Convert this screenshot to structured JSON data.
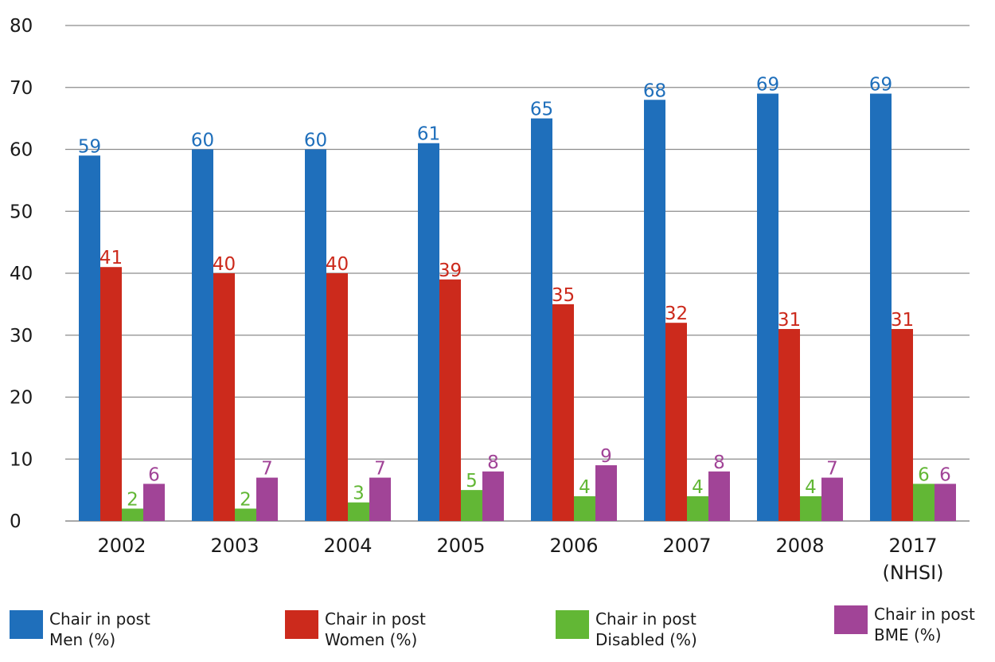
{
  "chart_data": {
    "type": "bar",
    "categories": [
      "2002",
      "2003",
      "2004",
      "2005",
      "2006",
      "2007",
      "2008",
      "2017\n(NHSI)"
    ],
    "series": [
      {
        "name": "Chair in post\nMen (%)",
        "color": "#1F6FBB",
        "values": [
          59,
          60,
          60,
          61,
          65,
          68,
          69,
          69
        ]
      },
      {
        "name": "Chair in post\nWomen (%)",
        "color": "#CC2A1C",
        "values": [
          41,
          40,
          40,
          39,
          35,
          32,
          31,
          31
        ]
      },
      {
        "name": "Chair in post\nDisabled (%)",
        "color": "#62B735",
        "values": [
          2,
          2,
          3,
          5,
          4,
          4,
          4,
          6
        ]
      },
      {
        "name": "Chair in post\nBME (%)",
        "color": "#A14497",
        "values": [
          6,
          7,
          7,
          8,
          9,
          8,
          7,
          6
        ]
      }
    ],
    "data_labels": [
      [
        "59",
        "60",
        "60",
        "61",
        "65",
        "68",
        "69",
        "69"
      ],
      [
        "41",
        "40",
        "40",
        "39",
        "35",
        "32",
        "31",
        "31"
      ],
      [
        "2",
        "2",
        "3",
        "5",
        "4",
        "4",
        "4",
        "6"
      ],
      [
        "6",
        "7",
        "7",
        "8",
        "9",
        "8",
        "7",
        "6"
      ]
    ],
    "ylim": [
      0,
      80
    ],
    "yticks": [
      0,
      10,
      20,
      30,
      40,
      50,
      60,
      70,
      80
    ],
    "grid": true,
    "legend_position": "bottom"
  }
}
